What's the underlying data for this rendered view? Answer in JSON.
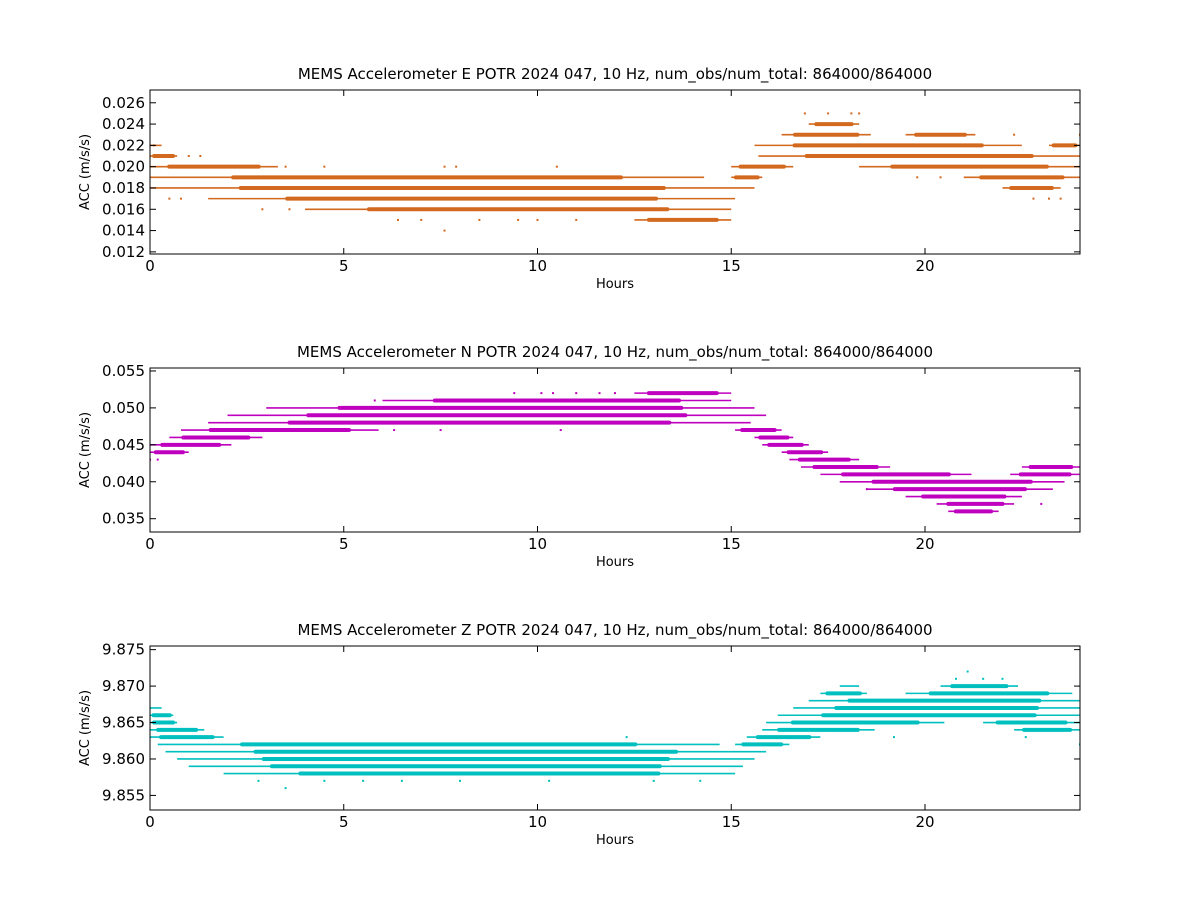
{
  "chart_data": [
    {
      "type": "scatter",
      "title": "MEMS Accelerometer E POTR 2024 047, 10 Hz, num_obs/num_total: 864000/864000",
      "xlabel": "Hours",
      "ylabel": "ACC (m/s/s)",
      "xlim": [
        0,
        24
      ],
      "ylim": [
        0.0118,
        0.0272
      ],
      "xticks": [
        0,
        5,
        10,
        15,
        20
      ],
      "yticks": [
        0.012,
        0.014,
        0.016,
        0.018,
        0.02,
        0.022,
        0.024,
        0.026
      ],
      "ytick_decimals": 3,
      "grid": false,
      "legend": "none",
      "color": "#d2691e",
      "series": [
        {
          "values": [
            {
              "y": 0.022,
              "segments": [
                [
                  0.0,
                  0.3
                ]
              ]
            },
            {
              "y": 0.021,
              "segments": [
                [
                  0.0,
                  0.7
                ],
                [
                  15.7,
                  24.0
                ]
              ]
            },
            {
              "y": 0.02,
              "segments": [
                [
                  0.0,
                  3.3
                ],
                [
                  15.0,
                  16.6
                ],
                [
                  18.3,
                  24.0
                ]
              ]
            },
            {
              "y": 0.019,
              "segments": [
                [
                  0.0,
                  14.3
                ],
                [
                  15.0,
                  15.8
                ],
                [
                  21.0,
                  24.0
                ]
              ]
            },
            {
              "y": 0.018,
              "segments": [
                [
                  0.0,
                  15.6
                ],
                [
                  22.0,
                  23.5
                ]
              ]
            },
            {
              "y": 0.017,
              "segments": [
                [
                  1.5,
                  15.1
                ]
              ]
            },
            {
              "y": 0.016,
              "segments": [
                [
                  4.0,
                  15.0
                ]
              ]
            },
            {
              "y": 0.015,
              "segments": [
                [
                  12.5,
                  15.0
                ]
              ]
            },
            {
              "y": 0.022,
              "segments": [
                [
                  15.6,
                  22.5
                ],
                [
                  23.2,
                  24.0
                ]
              ]
            },
            {
              "y": 0.023,
              "segments": [
                [
                  16.3,
                  18.6
                ],
                [
                  19.5,
                  21.3
                ]
              ]
            },
            {
              "y": 0.024,
              "segments": [
                [
                  17.0,
                  18.3
                ]
              ]
            }
          ]
        }
      ],
      "scatter_points": [
        [
          0.1,
          0.022
        ],
        [
          1.0,
          0.021
        ],
        [
          1.3,
          0.021
        ],
        [
          3.5,
          0.02
        ],
        [
          4.5,
          0.02
        ],
        [
          7.6,
          0.02
        ],
        [
          7.9,
          0.02
        ],
        [
          10.5,
          0.02
        ],
        [
          7.6,
          0.014
        ],
        [
          6.4,
          0.015
        ],
        [
          7.0,
          0.015
        ],
        [
          8.5,
          0.015
        ],
        [
          9.5,
          0.015
        ],
        [
          10.0,
          0.015
        ],
        [
          11.0,
          0.015
        ],
        [
          2.9,
          0.016
        ],
        [
          3.6,
          0.016
        ],
        [
          0.5,
          0.017
        ],
        [
          0.8,
          0.017
        ],
        [
          16.9,
          0.025
        ],
        [
          17.5,
          0.025
        ],
        [
          18.1,
          0.025
        ],
        [
          18.3,
          0.025
        ],
        [
          22.3,
          0.023
        ],
        [
          19.8,
          0.019
        ],
        [
          20.4,
          0.019
        ],
        [
          23.2,
          0.017
        ],
        [
          23.5,
          0.017
        ],
        [
          22.8,
          0.017
        ],
        [
          24.0,
          0.023
        ]
      ]
    },
    {
      "type": "scatter",
      "title": "MEMS Accelerometer N POTR 2024 047, 10 Hz, num_obs/num_total: 864000/864000",
      "xlabel": "Hours",
      "ylabel": "ACC (m/s/s)",
      "xlim": [
        0,
        24
      ],
      "ylim": [
        0.0332,
        0.0554
      ],
      "xticks": [
        0,
        5,
        10,
        15,
        20
      ],
      "yticks": [
        0.035,
        0.04,
        0.045,
        0.05,
        0.055
      ],
      "ytick_decimals": 3,
      "grid": false,
      "legend": "none",
      "color": "#bf00bf",
      "series": [
        {
          "values": [
            {
              "y": 0.044,
              "segments": [
                [
                  0.0,
                  1.0
                ]
              ]
            },
            {
              "y": 0.045,
              "segments": [
                [
                  0.0,
                  2.1
                ]
              ]
            },
            {
              "y": 0.046,
              "segments": [
                [
                  0.5,
                  2.9
                ]
              ]
            },
            {
              "y": 0.047,
              "segments": [
                [
                  0.8,
                  5.9
                ]
              ]
            },
            {
              "y": 0.048,
              "segments": [
                [
                  1.5,
                  15.5
                ]
              ]
            },
            {
              "y": 0.049,
              "segments": [
                [
                  2.0,
                  15.9
                ]
              ]
            },
            {
              "y": 0.05,
              "segments": [
                [
                  3.0,
                  15.6
                ]
              ]
            },
            {
              "y": 0.051,
              "segments": [
                [
                  6.0,
                  15.0
                ]
              ]
            },
            {
              "y": 0.052,
              "segments": [
                [
                  12.5,
                  15.0
                ]
              ]
            },
            {
              "y": 0.047,
              "segments": [
                [
                  15.1,
                  16.3
                ]
              ]
            },
            {
              "y": 0.046,
              "segments": [
                [
                  15.6,
                  16.6
                ]
              ]
            },
            {
              "y": 0.045,
              "segments": [
                [
                  15.8,
                  17.0
                ]
              ]
            },
            {
              "y": 0.044,
              "segments": [
                [
                  16.3,
                  17.5
                ]
              ]
            },
            {
              "y": 0.043,
              "segments": [
                [
                  16.5,
                  18.3
                ]
              ]
            },
            {
              "y": 0.042,
              "segments": [
                [
                  16.8,
                  19.1
                ],
                [
                  22.5,
                  24.0
                ]
              ]
            },
            {
              "y": 0.041,
              "segments": [
                [
                  17.3,
                  21.2
                ],
                [
                  22.2,
                  24.0
                ]
              ]
            },
            {
              "y": 0.04,
              "segments": [
                [
                  17.8,
                  23.6
                ]
              ]
            },
            {
              "y": 0.039,
              "segments": [
                [
                  18.5,
                  23.3
                ]
              ]
            },
            {
              "y": 0.038,
              "segments": [
                [
                  19.5,
                  22.5
                ]
              ]
            },
            {
              "y": 0.037,
              "segments": [
                [
                  20.3,
                  22.3
                ]
              ]
            },
            {
              "y": 0.036,
              "segments": [
                [
                  20.6,
                  21.9
                ]
              ]
            }
          ]
        }
      ],
      "scatter_points": [
        [
          9.4,
          0.052
        ],
        [
          10.1,
          0.052
        ],
        [
          10.4,
          0.052
        ],
        [
          11.0,
          0.052
        ],
        [
          11.6,
          0.052
        ],
        [
          12.0,
          0.052
        ],
        [
          0.2,
          0.043
        ],
        [
          0.0,
          0.043
        ],
        [
          7.5,
          0.047
        ],
        [
          6.3,
          0.047
        ],
        [
          10.6,
          0.047
        ],
        [
          18.5,
          0.039
        ],
        [
          23.0,
          0.037
        ],
        [
          18.0,
          0.043
        ],
        [
          5.8,
          0.051
        ]
      ]
    },
    {
      "type": "scatter",
      "title": "MEMS Accelerometer Z POTR 2024 047, 10 Hz, num_obs/num_total: 864000/864000",
      "xlabel": "Hours",
      "ylabel": "ACC (m/s/s)",
      "xlim": [
        0,
        24
      ],
      "ylim": [
        9.853,
        9.8755
      ],
      "xticks": [
        0,
        5,
        10,
        15,
        20
      ],
      "yticks": [
        9.855,
        9.86,
        9.865,
        9.87,
        9.875
      ],
      "ytick_decimals": 3,
      "grid": false,
      "legend": "none",
      "color": "#00bfbf",
      "series": [
        {
          "values": [
            {
              "y": 9.867,
              "segments": [
                [
                  0.0,
                  0.3
                ]
              ]
            },
            {
              "y": 9.866,
              "segments": [
                [
                  0.0,
                  0.6
                ]
              ]
            },
            {
              "y": 9.865,
              "segments": [
                [
                  0.0,
                  0.7
                ]
              ]
            },
            {
              "y": 9.864,
              "segments": [
                [
                  0.0,
                  1.4
                ]
              ]
            },
            {
              "y": 9.863,
              "segments": [
                [
                  0.0,
                  1.9
                ]
              ]
            },
            {
              "y": 9.862,
              "segments": [
                [
                  0.2,
                  14.7
                ]
              ]
            },
            {
              "y": 9.861,
              "segments": [
                [
                  0.4,
                  15.9
                ]
              ]
            },
            {
              "y": 9.86,
              "segments": [
                [
                  0.7,
                  15.6
                ]
              ]
            },
            {
              "y": 9.859,
              "segments": [
                [
                  1.0,
                  15.3
                ]
              ]
            },
            {
              "y": 9.858,
              "segments": [
                [
                  1.9,
                  15.1
                ]
              ]
            },
            {
              "y": 9.862,
              "segments": [
                [
                  15.1,
                  16.5
                ]
              ]
            },
            {
              "y": 9.863,
              "segments": [
                [
                  15.4,
                  17.3
                ]
              ]
            },
            {
              "y": 9.864,
              "segments": [
                [
                  15.8,
                  18.7
                ],
                [
                  22.3,
                  24.0
                ]
              ]
            },
            {
              "y": 9.865,
              "segments": [
                [
                  15.9,
                  20.5
                ],
                [
                  21.5,
                  24.0
                ]
              ]
            },
            {
              "y": 9.866,
              "segments": [
                [
                  16.2,
                  24.0
                ]
              ]
            },
            {
              "y": 9.867,
              "segments": [
                [
                  16.6,
                  24.0
                ]
              ]
            },
            {
              "y": 9.868,
              "segments": [
                [
                  17.0,
                  24.0
                ]
              ]
            },
            {
              "y": 9.869,
              "segments": [
                [
                  17.3,
                  18.5
                ],
                [
                  19.5,
                  23.8
                ]
              ]
            },
            {
              "y": 9.87,
              "segments": [
                [
                  17.8,
                  18.3
                ],
                [
                  20.4,
                  22.4
                ]
              ]
            }
          ]
        }
      ],
      "scatter_points": [
        [
          3.5,
          9.856
        ],
        [
          2.8,
          9.857
        ],
        [
          4.5,
          9.857
        ],
        [
          5.5,
          9.857
        ],
        [
          6.5,
          9.857
        ],
        [
          8.0,
          9.857
        ],
        [
          10.3,
          9.857
        ],
        [
          13.0,
          9.857
        ],
        [
          14.2,
          9.857
        ],
        [
          12.3,
          9.863
        ],
        [
          21.1,
          9.872
        ],
        [
          20.8,
          9.871
        ],
        [
          21.5,
          9.871
        ],
        [
          22.0,
          9.871
        ],
        [
          19.2,
          9.863
        ],
        [
          22.6,
          9.863
        ],
        [
          24.0,
          9.862
        ],
        [
          17.5,
          9.864
        ]
      ]
    }
  ]
}
